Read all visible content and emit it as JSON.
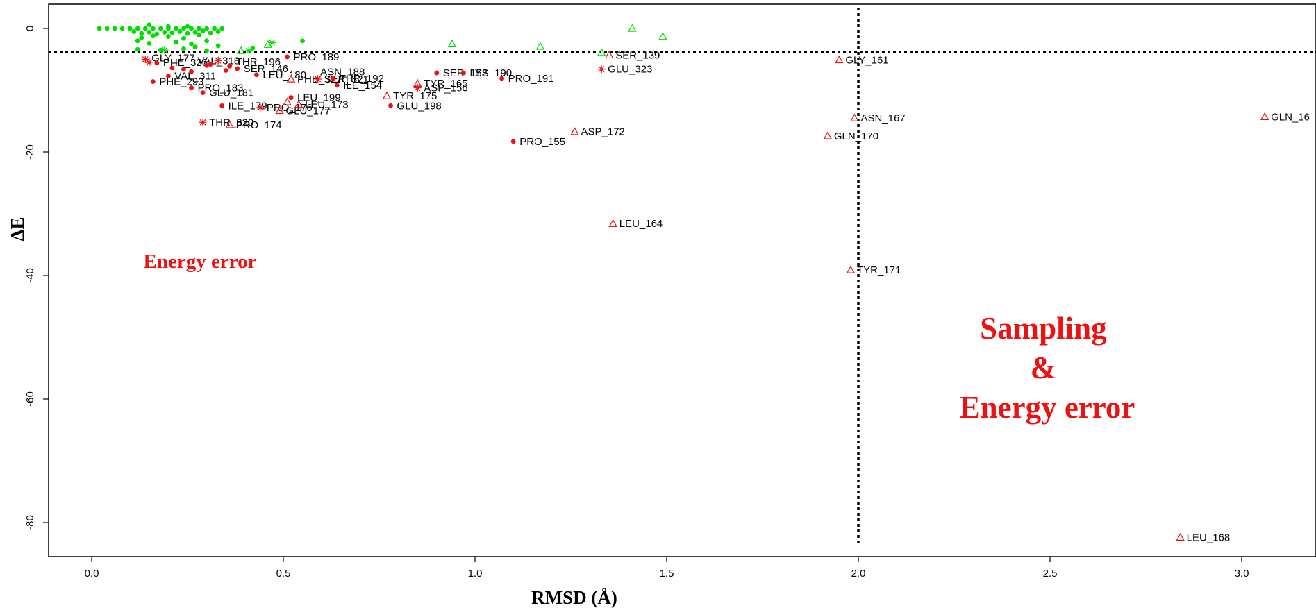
{
  "chart_data": {
    "type": "scatter",
    "title": "",
    "xlabel": "RMSD (Å)",
    "ylabel": "ΔE",
    "xlim": [
      -0.1,
      3.2
    ],
    "ylim": [
      -85,
      4
    ],
    "xticks": [
      "0.0",
      "0.5",
      "1.0",
      "1.5",
      "2.0",
      "2.5",
      "3.0"
    ],
    "yticks": [
      "0",
      "-20",
      "-40",
      "-60",
      "-80"
    ],
    "colors": {
      "green": "#00dd00",
      "red": "#ee1111"
    },
    "reference_lines": {
      "vertical_x": 2.0,
      "horizontal_y": -3.8
    },
    "annotations": [
      {
        "id": "energy",
        "text": "Energy error",
        "lines": [
          "Energy error"
        ],
        "position": "left-middle",
        "color": "#ee1111"
      },
      {
        "id": "sampling",
        "text": "Sampling & Energy error",
        "lines": [
          "Sampling",
          "&",
          "Energy  error"
        ],
        "position": "right-middle",
        "color": "#ee1111"
      }
    ],
    "series": [
      {
        "marker": "filled-circle",
        "color": "#00dd00",
        "points": [
          [
            0.02,
            0
          ],
          [
            0.04,
            0
          ],
          [
            0.06,
            0
          ],
          [
            0.08,
            0
          ],
          [
            0.1,
            0
          ],
          [
            0.12,
            0
          ],
          [
            0.14,
            0
          ],
          [
            0.16,
            0
          ],
          [
            0.18,
            0
          ],
          [
            0.2,
            0
          ],
          [
            0.22,
            0
          ],
          [
            0.24,
            0
          ],
          [
            0.26,
            0
          ],
          [
            0.28,
            0
          ],
          [
            0.3,
            0
          ],
          [
            0.32,
            0
          ],
          [
            0.34,
            0
          ],
          [
            0.15,
            0.6
          ],
          [
            0.2,
            0.3
          ],
          [
            0.25,
            0.3
          ],
          [
            0.11,
            -0.5
          ],
          [
            0.13,
            -0.8
          ],
          [
            0.15,
            -0.6
          ],
          [
            0.17,
            -0.9
          ],
          [
            0.19,
            -0.6
          ],
          [
            0.21,
            -0.7
          ],
          [
            0.23,
            -0.5
          ],
          [
            0.25,
            -0.8
          ],
          [
            0.27,
            -0.6
          ],
          [
            0.29,
            -0.4
          ],
          [
            0.31,
            -0.7
          ],
          [
            0.33,
            -0.5
          ],
          [
            0.13,
            -1.5
          ],
          [
            0.16,
            -1.2
          ],
          [
            0.2,
            -1.3
          ],
          [
            0.24,
            -1.6
          ],
          [
            0.28,
            -1.1
          ],
          [
            0.12,
            -2.0
          ],
          [
            0.15,
            -2.4
          ],
          [
            0.22,
            -2.2
          ],
          [
            0.26,
            -2.5
          ],
          [
            0.3,
            -2.0
          ],
          [
            0.27,
            -3.0
          ],
          [
            0.33,
            -2.8
          ],
          [
            0.18,
            -3.5
          ],
          [
            0.24,
            -3.3
          ],
          [
            0.12,
            -3.4
          ],
          [
            0.3,
            -3.6
          ],
          [
            0.42,
            -3.2
          ],
          [
            0.55,
            -2.0
          ]
        ]
      },
      {
        "marker": "open-triangle",
        "color": "#00dd00",
        "points": [
          [
            0.94,
            -2.5
          ],
          [
            1.17,
            -2.9
          ],
          [
            1.33,
            -3.9
          ],
          [
            1.41,
            0.0
          ],
          [
            1.49,
            -1.3
          ],
          [
            0.39,
            -3.6
          ],
          [
            0.46,
            -2.6
          ]
        ]
      },
      {
        "marker": "star",
        "color": "#00dd00",
        "points": [
          [
            0.19,
            -3.5
          ],
          [
            0.47,
            -2.3
          ],
          [
            0.41,
            -3.6
          ]
        ]
      },
      {
        "marker": "filled-circle",
        "color": "#ee1111",
        "points": [
          [
            0.17,
            -5.6
          ],
          [
            0.51,
            -4.6
          ],
          [
            0.9,
            -7.2
          ],
          [
            0.97,
            -7.2
          ],
          [
            1.07,
            -8.1
          ],
          [
            0.43,
            -7.5
          ],
          [
            0.64,
            -9.2
          ],
          [
            0.63,
            -8.1
          ],
          [
            0.52,
            -11.2
          ],
          [
            0.34,
            -12.5
          ],
          [
            0.78,
            -12.5
          ],
          [
            0.29,
            -10.4
          ],
          [
            0.16,
            -8.6
          ],
          [
            1.1,
            -18.3
          ],
          [
            0.26,
            -9.6
          ],
          [
            0.21,
            -6.4
          ],
          [
            0.24,
            -6.6
          ],
          [
            0.3,
            -6.0
          ],
          [
            0.36,
            -6.1
          ],
          [
            0.26,
            -7.0
          ],
          [
            0.2,
            -7.7
          ],
          [
            0.35,
            -6.8
          ],
          [
            0.31,
            -5.8
          ],
          [
            0.38,
            -6.5
          ]
        ]
      },
      {
        "marker": "open-triangle",
        "color": "#ee1111",
        "points": [
          [
            1.35,
            -4.3
          ],
          [
            1.95,
            -5.1
          ],
          [
            0.85,
            -8.9
          ],
          [
            0.77,
            -10.9
          ],
          [
            0.51,
            -11.9
          ],
          [
            0.49,
            -13.3
          ],
          [
            0.36,
            -15.6
          ],
          [
            1.26,
            -16.7
          ],
          [
            1.36,
            -31.6
          ],
          [
            1.99,
            -14.5
          ],
          [
            1.92,
            -17.4
          ],
          [
            1.98,
            -39.1
          ],
          [
            3.06,
            -14.3
          ],
          [
            2.84,
            -82.4
          ],
          [
            0.54,
            -12.3
          ],
          [
            0.52,
            -8.2
          ]
        ]
      },
      {
        "marker": "star",
        "color": "#ee1111",
        "points": [
          [
            0.14,
            -5.0
          ],
          [
            0.15,
            -5.5
          ],
          [
            0.29,
            -15.2
          ],
          [
            0.44,
            -12.8
          ],
          [
            1.33,
            -6.6
          ],
          [
            0.85,
            -9.6
          ],
          [
            0.59,
            -8.2
          ],
          [
            0.33,
            -5.2
          ]
        ]
      }
    ],
    "point_labels": [
      {
        "x": 0.14,
        "y": -4.8,
        "text": "GLY_177"
      },
      {
        "x": 0.17,
        "y": -5.5,
        "text": "PHE_326"
      },
      {
        "x": 0.2,
        "y": -7.7,
        "text": "VAL_311"
      },
      {
        "x": 0.16,
        "y": -8.6,
        "text": "PHE_293"
      },
      {
        "x": 0.26,
        "y": -9.6,
        "text": "PRO_183"
      },
      {
        "x": 0.29,
        "y": -10.4,
        "text": "GLU_181"
      },
      {
        "x": 0.34,
        "y": -12.5,
        "text": "ILE_179"
      },
      {
        "x": 0.44,
        "y": -12.8,
        "text": "PRO_176"
      },
      {
        "x": 0.29,
        "y": -15.2,
        "text": "THR_320"
      },
      {
        "x": 0.36,
        "y": -15.6,
        "text": "PRO_174"
      },
      {
        "x": 0.49,
        "y": -13.3,
        "text": "GLU_177"
      },
      {
        "x": 0.54,
        "y": -12.3,
        "text": "LEU_173"
      },
      {
        "x": 0.52,
        "y": -11.2,
        "text": "LEU_199"
      },
      {
        "x": 0.78,
        "y": -12.5,
        "text": "GLU_198"
      },
      {
        "x": 0.77,
        "y": -10.9,
        "text": "TYR_175"
      },
      {
        "x": 0.85,
        "y": -9.6,
        "text": "ASP_156"
      },
      {
        "x": 0.85,
        "y": -8.9,
        "text": "TYR_165"
      },
      {
        "x": 0.64,
        "y": -9.2,
        "text": "ILE_154"
      },
      {
        "x": 0.59,
        "y": -8.2,
        "text": "SER_321"
      },
      {
        "x": 0.52,
        "y": -8.2,
        "text": "PHE_327"
      },
      {
        "x": 0.43,
        "y": -7.5,
        "text": "LEU_180"
      },
      {
        "x": 0.63,
        "y": -8.1,
        "text": "THR_192"
      },
      {
        "x": 0.58,
        "y": -7.0,
        "text": "ASN_188"
      },
      {
        "x": 0.51,
        "y": -4.6,
        "text": "PRO_189"
      },
      {
        "x": 0.26,
        "y": -5.2,
        "text": "VAL_318"
      },
      {
        "x": 0.36,
        "y": -5.4,
        "text": "THR_196"
      },
      {
        "x": 0.38,
        "y": -6.5,
        "text": "SER_146"
      },
      {
        "x": 0.9,
        "y": -7.2,
        "text": "SER_152"
      },
      {
        "x": 0.97,
        "y": -7.2,
        "text": "LYS_190"
      },
      {
        "x": 1.07,
        "y": -8.1,
        "text": "PRO_191"
      },
      {
        "x": 1.1,
        "y": -18.3,
        "text": "PRO_155"
      },
      {
        "x": 1.26,
        "y": -16.7,
        "text": "ASP_172"
      },
      {
        "x": 1.36,
        "y": -31.6,
        "text": "LEU_164"
      },
      {
        "x": 1.35,
        "y": -4.3,
        "text": "SER_139"
      },
      {
        "x": 1.33,
        "y": -6.6,
        "text": "GLU_323"
      },
      {
        "x": 1.95,
        "y": -5.1,
        "text": "GLY_161"
      },
      {
        "x": 1.99,
        "y": -14.5,
        "text": "ASN_167"
      },
      {
        "x": 1.92,
        "y": -17.4,
        "text": "GLN_170"
      },
      {
        "x": 1.98,
        "y": -39.1,
        "text": "TYR_171"
      },
      {
        "x": 3.06,
        "y": -14.3,
        "text": "GLN_16"
      },
      {
        "x": 2.84,
        "y": -82.4,
        "text": "LEU_168"
      }
    ]
  }
}
